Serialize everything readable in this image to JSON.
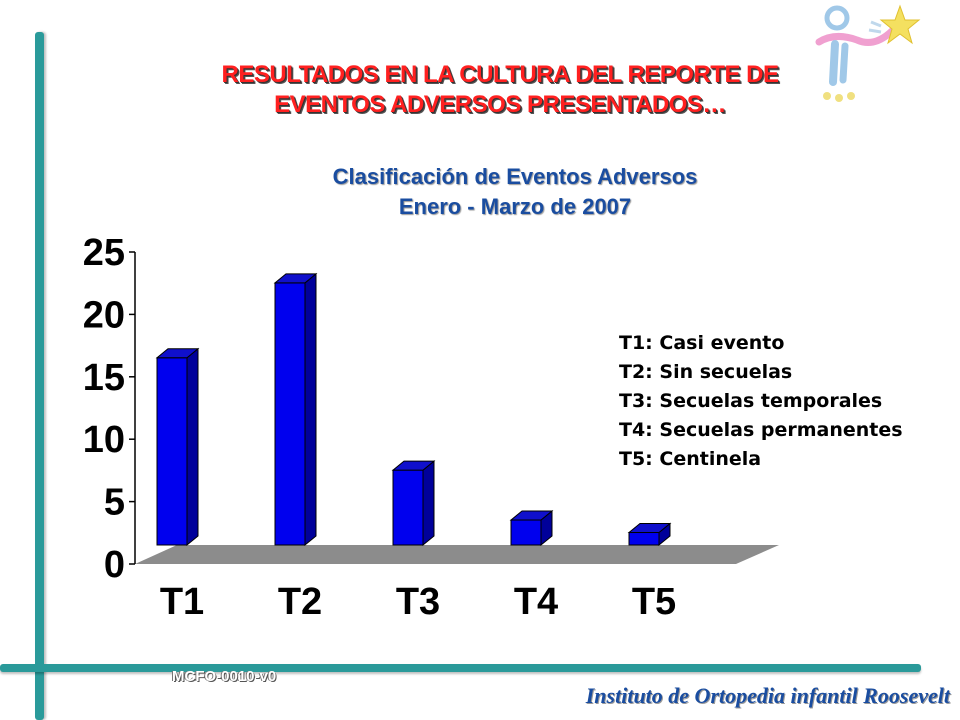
{
  "slide": {
    "title_line1": "RESULTADOS  EN LA CULTURA DEL REPORTE DE",
    "title_line2": "EVENTOS ADVERSOS PRESENTADOS…",
    "footer_code": "MCFO-0010-v0",
    "institution": "Instituto de Ortopedia infantil Roosevelt"
  },
  "chart_data": {
    "type": "bar",
    "title": "Clasificación de Eventos Adversos",
    "subtitle": "Enero -  Marzo de 2007",
    "categories": [
      "T1",
      "T2",
      "T3",
      "T4",
      "T5"
    ],
    "values": [
      15,
      21,
      6,
      2,
      1
    ],
    "ylim": [
      0,
      25
    ],
    "yticks": [
      "0",
      "5",
      "10",
      "15",
      "20",
      "25"
    ],
    "legend": [
      "T1: Casi evento",
      "T2: Sin secuelas",
      "T3: Secuelas temporales",
      "T4: Secuelas permanentes",
      "T5: Centinela"
    ],
    "legend_position": "right",
    "bar_color": "#0000ee",
    "bar_side_color": "#00009a",
    "bar_top_color": "#1010cc",
    "floor_color": "#8c8c8c",
    "grid": false
  }
}
